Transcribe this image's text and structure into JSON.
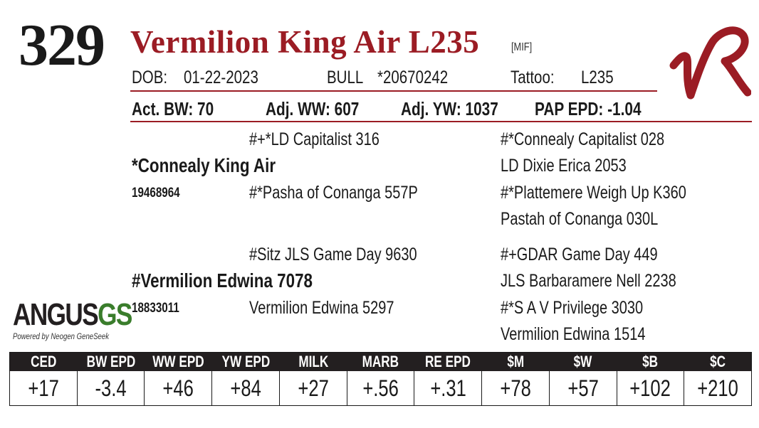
{
  "lot_number": "329",
  "animal_name": "Vermilion King Air L235",
  "tag": "[MIF]",
  "header": {
    "dob_label": "DOB:",
    "dob": "01-22-2023",
    "sex": "BULL",
    "registration": "*20670242",
    "tattoo_label": "Tattoo:",
    "tattoo": "L235"
  },
  "performance": {
    "bw": "Act. BW: 70",
    "ww": "Adj. WW: 607",
    "yw": "Adj. YW: 1037",
    "pap": "PAP EPD: -1.04"
  },
  "pedigree": {
    "sire": {
      "name": "*Connealy King Air",
      "reg": "19468964"
    },
    "sire_sire": "#+*LD Capitalist 316",
    "sire_dam": "#*Pasha of Conanga 557P",
    "sire_sire_sire": "#*Connealy Capitalist 028",
    "sire_sire_dam": "LD Dixie Erica 2053",
    "sire_dam_sire": "#*Plattemere Weigh Up K360",
    "sire_dam_dam": "Pastah of Conanga 030L",
    "dam": {
      "name": "#Vermilion Edwina 7078",
      "reg": "18833011"
    },
    "dam_sire": "#Sitz JLS Game Day 9630",
    "dam_dam": "Vermilion Edwina 5297",
    "dam_sire_sire": "#+GDAR Game Day 449",
    "dam_sire_dam": "JLS Barbaramere Nell 2238",
    "dam_dam_sire": "#*S A V Privilege 3030",
    "dam_dam_dam": "Vermilion Edwina 1514"
  },
  "angus_logo": {
    "main": "ANGUS",
    "suffix": "GS",
    "tagline": "Powered by Neogen GeneSeek"
  },
  "epd_headers": [
    "CED",
    "BW EPD",
    "WW EPD",
    "YW EPD",
    "MILK EPD",
    "MARB EPD",
    "RE EPD",
    "$M",
    "$W",
    "$B",
    "$C"
  ],
  "epd_values": [
    "+17",
    "-3.4",
    "+46",
    "+84",
    "+27",
    "+.56",
    "+.31",
    "+78",
    "+57",
    "+102",
    "+210"
  ],
  "colors": {
    "accent": "#9b1c24",
    "header_bg": "#231f20",
    "logo_green": "#3a7d2c"
  }
}
